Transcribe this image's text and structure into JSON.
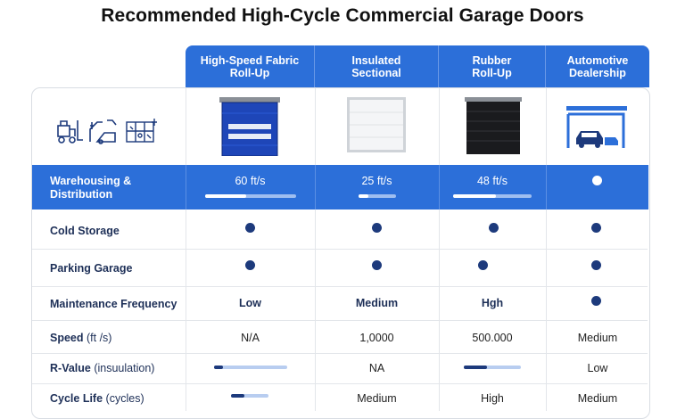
{
  "title": "Recommended High-Cycle Commercial Garage Doors",
  "columns": [
    {
      "line1": "High-Speed Fabric",
      "line2": "Roll-Up"
    },
    {
      "line1": "Insulated",
      "line2": "Sectional"
    },
    {
      "line1": "Rubber",
      "line2": "Roll-Up"
    },
    {
      "line1": "Automotive",
      "line2": "Dealership"
    }
  ],
  "icons": [
    "forklift-icon",
    "truck-dock-icon",
    "blueprint-icon"
  ],
  "rows": {
    "warehousing": {
      "label1": "Warehousing &",
      "label2": "Distribution",
      "values": [
        "60 ft/s",
        "25 ft/s",
        "48 ft/s",
        ""
      ],
      "levels": [
        0.45,
        0.25,
        0.55
      ]
    },
    "cold_storage": {
      "label": "Cold Storage"
    },
    "parking": {
      "label": "Parking Garage"
    },
    "maintenance": {
      "label": "Maintenance Frequency",
      "values": [
        "Low",
        "Medium",
        "Hgh"
      ]
    },
    "speed": {
      "label": "Speed",
      "unit": "(ft /s)",
      "values": [
        "N/A",
        "1,0000",
        "500.000",
        "Medium"
      ]
    },
    "rvalue": {
      "label": "R-Value",
      "unit": "(insuulation)",
      "values": [
        "NA",
        "Low"
      ],
      "levels": [
        0.12,
        0.4
      ]
    },
    "cycle": {
      "label": "Cycle Life",
      "unit": "(cycles)",
      "values": [
        "Medium",
        "High",
        "Medium"
      ],
      "levels": [
        0.35
      ]
    }
  },
  "colors": {
    "accent": "#2c6fd9",
    "dark": "#1d3a7c",
    "text": "#1d2f57"
  }
}
